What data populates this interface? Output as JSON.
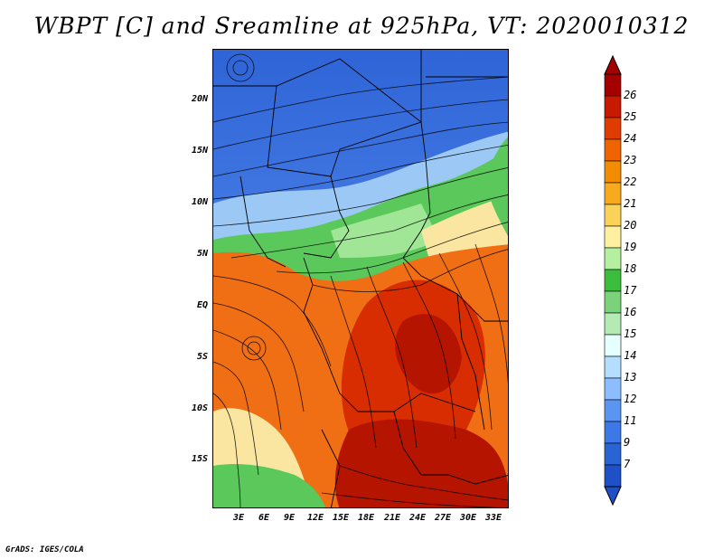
{
  "title": "WBPT [C] and Sreamline at 925hPa, VT: 2020010312",
  "credit": "GrADS: IGES/COLA",
  "map": {
    "lat_labels": [
      "20N",
      "15N",
      "10N",
      "5N",
      "EQ",
      "5S",
      "10S",
      "15S"
    ],
    "lon_labels": [
      "3E",
      "6E",
      "9E",
      "12E",
      "15E",
      "18E",
      "21E",
      "24E",
      "27E",
      "30E",
      "33E"
    ]
  },
  "colorbar": {
    "labels": [
      "26",
      "25",
      "24",
      "23",
      "22",
      "21",
      "20",
      "19",
      "18",
      "17",
      "16",
      "15",
      "14",
      "13",
      "12",
      "11",
      "9",
      "7"
    ],
    "colors": [
      "#a50000",
      "#c81a00",
      "#e13c00",
      "#f06400",
      "#f28c00",
      "#f8aa1e",
      "#fad25a",
      "#fff0a0",
      "#b4f0a0",
      "#3cbe3c",
      "#7ad27a",
      "#b4ebb4",
      "#e6ffff",
      "#b4deff",
      "#8cbeff",
      "#5a96f0",
      "#3c78e6",
      "#2864d2",
      "#1e50c8"
    ]
  },
  "palette": {
    "cold": "#2f64d7",
    "cool": "#78aaf5",
    "green": "#5ac85a",
    "lightgreen": "#a0e696",
    "yellow": "#fae6a0",
    "orange": "#f06e14",
    "red": "#d72d00",
    "darkred": "#b41400"
  }
}
